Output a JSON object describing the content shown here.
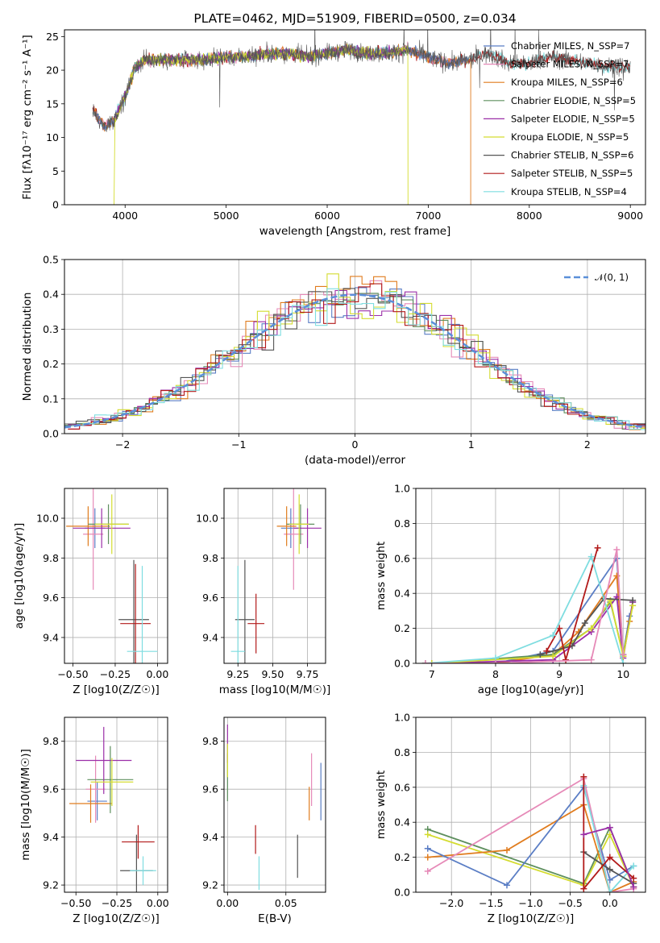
{
  "chart_data": [
    {
      "type": "line",
      "title": "PLATE=0462, MJD=51909, FIBERID=0500, z=0.034",
      "xlabel": "wavelength [Angstrom, rest frame]",
      "ylabel": "Flux [fλ10⁻¹⁷ erg cm⁻² s⁻¹ A⁻¹]",
      "xlim": [
        3400,
        9150
      ],
      "ylim": [
        0,
        26
      ],
      "xticks": [
        4000,
        5000,
        6000,
        7000,
        8000,
        9000
      ],
      "yticks": [
        0,
        5,
        10,
        15,
        20,
        25
      ],
      "legend_position": "top-right",
      "series": [
        {
          "name": "Chabrier MILES, N_SSP=7",
          "color": "#5B7EC5",
          "x_range": [
            3700,
            7400
          ]
        },
        {
          "name": "Salpeter MILES, N_SSP=7",
          "color": "#E68AB8",
          "x_range": [
            3700,
            7400
          ]
        },
        {
          "name": "Kroupa MILES, N_SSP=6",
          "color": "#E07C1E",
          "x_range": [
            3700,
            7420
          ]
        },
        {
          "name": "Chabrier ELODIE, N_SSP=5",
          "color": "#5E8F5E",
          "x_range": [
            3900,
            6800
          ]
        },
        {
          "name": "Salpeter ELODIE, N_SSP=5",
          "color": "#9B2FA8",
          "x_range": [
            3900,
            6800
          ]
        },
        {
          "name": "Kroupa ELODIE, N_SSP=5",
          "color": "#D4DC30",
          "x_range": [
            3900,
            6800
          ]
        },
        {
          "name": "Chabrier STELIB, N_SSP=6",
          "color": "#555555",
          "x_range": [
            3680,
            9000
          ]
        },
        {
          "name": "Salpeter STELIB, N_SSP=5",
          "color": "#B21A1A",
          "x_range": [
            3680,
            9000
          ]
        },
        {
          "name": "Kroupa STELIB, N_SSP=4",
          "color": "#7FDDE0",
          "x_range": [
            3680,
            9000
          ]
        }
      ],
      "continuum_knots_x": [
        3680,
        3800,
        3900,
        4000,
        4100,
        4200,
        4400,
        4600,
        4800,
        5000,
        5200,
        5400,
        5600,
        5800,
        6000,
        6200,
        6400,
        6600,
        6800,
        7000,
        7200,
        7400,
        7600,
        7800,
        8000,
        8200,
        8400,
        8600,
        8800,
        9000
      ],
      "continuum_knots_y": [
        14,
        11.5,
        13,
        16,
        20.5,
        21.5,
        21.5,
        21.5,
        21.5,
        22,
        22,
        22.5,
        22.5,
        22,
        22.5,
        23,
        22.5,
        22.5,
        23,
        22,
        21,
        21.5,
        22.5,
        21,
        21,
        22,
        21.5,
        21,
        20.5,
        20.5
      ]
    },
    {
      "type": "step",
      "xlabel": "(data-model)/error",
      "ylabel": "Normed distribution",
      "xlim": [
        -2.5,
        2.5
      ],
      "ylim": [
        0,
        0.5
      ],
      "xticks": [
        -2,
        -1,
        0,
        1,
        2
      ],
      "yticks": [
        0.0,
        0.1,
        0.2,
        0.3,
        0.4,
        0.5
      ],
      "legend": "𝒩(0, 1)",
      "legend_position": "top-right",
      "bin_width": 0.1
    },
    {
      "type": "scatter",
      "xlabel": "Z [log10(Z/Z☉)]",
      "ylabel": "age [log10(age/yr)]",
      "xlim": [
        -0.55,
        0.06
      ],
      "ylim": [
        9.27,
        10.15
      ],
      "xticks": [
        -0.5,
        -0.25,
        0.0
      ],
      "yticks": [
        9.4,
        9.6,
        9.8,
        10.0
      ],
      "points": [
        {
          "x": -0.37,
          "xerr": 0.06,
          "y": 9.95,
          "yerr": 0.1
        },
        {
          "x": -0.38,
          "xerr": 0.06,
          "y": 9.92,
          "yerr": 0.28
        },
        {
          "x": -0.41,
          "xerr": 0.13,
          "y": 9.96,
          "yerr": 0.1
        },
        {
          "x": -0.29,
          "xerr": 0.12,
          "y": 9.97,
          "yerr": 0.1
        },
        {
          "x": -0.33,
          "xerr": 0.17,
          "y": 9.95,
          "yerr": 0.1
        },
        {
          "x": -0.27,
          "xerr": 0.1,
          "y": 9.97,
          "yerr": 0.15
        },
        {
          "x": -0.14,
          "xerr": 0.09,
          "y": 9.49,
          "yerr": 0.3
        },
        {
          "x": -0.13,
          "xerr": 0.09,
          "y": 9.47,
          "yerr": 0.3
        },
        {
          "x": -0.09,
          "xerr": 0.09,
          "y": 9.33,
          "yerr": 0.43
        }
      ]
    },
    {
      "type": "scatter",
      "xlabel": "mass [log10(M/M☉)]",
      "xlim": [
        9.15,
        9.88
      ],
      "ylim": [
        9.27,
        10.15
      ],
      "xticks": [
        9.25,
        9.5,
        9.75
      ],
      "yticks": [
        9.4,
        9.6,
        9.8,
        10.0
      ],
      "points": [
        {
          "x": 9.63,
          "xerr": 0.07,
          "y": 9.95,
          "yerr": 0.1
        },
        {
          "x": 9.65,
          "xerr": 0.07,
          "y": 9.92,
          "yerr": 0.28
        },
        {
          "x": 9.6,
          "xerr": 0.07,
          "y": 9.96,
          "yerr": 0.1
        },
        {
          "x": 9.7,
          "xerr": 0.1,
          "y": 9.97,
          "yerr": 0.1
        },
        {
          "x": 9.75,
          "xerr": 0.1,
          "y": 9.95,
          "yerr": 0.1
        },
        {
          "x": 9.69,
          "xerr": 0.07,
          "y": 9.97,
          "yerr": 0.15
        },
        {
          "x": 9.3,
          "xerr": 0.07,
          "y": 9.49,
          "yerr": 0.3
        },
        {
          "x": 9.38,
          "xerr": 0.06,
          "y": 9.47,
          "yerr": 0.15
        },
        {
          "x": 9.25,
          "xerr": 0.05,
          "y": 9.33,
          "yerr": 0.43
        }
      ]
    },
    {
      "type": "line",
      "xlabel": "age [log10(age/yr)]",
      "ylabel": "mass weight",
      "xlim": [
        6.75,
        10.35
      ],
      "ylim": [
        0,
        1
      ],
      "xticks": [
        7,
        8,
        9,
        10
      ],
      "yticks": [
        0.0,
        0.2,
        0.4,
        0.6,
        0.8,
        1.0
      ],
      "series": [
        {
          "color": "#5B7EC5",
          "x": [
            6.9,
            8.0,
            8.9,
            9.9,
            10.0,
            10.1
          ],
          "y": [
            0.0,
            0.0,
            0.07,
            0.6,
            0.05,
            0.27
          ]
        },
        {
          "color": "#E07C1E",
          "x": [
            6.9,
            8.0,
            8.9,
            9.3,
            9.9,
            10.0,
            10.1
          ],
          "y": [
            0.0,
            0.0,
            0.05,
            0.18,
            0.5,
            0.04,
            0.24
          ]
        },
        {
          "color": "#5E8F5E",
          "x": [
            7.0,
            8.9,
            9.5,
            9.8,
            10.0,
            10.15
          ],
          "y": [
            0.0,
            0.05,
            0.2,
            0.35,
            0.05,
            0.35
          ]
        },
        {
          "color": "#9B2FA8",
          "x": [
            7.0,
            8.9,
            9.5,
            9.9,
            10.0,
            10.15
          ],
          "y": [
            0.0,
            0.02,
            0.18,
            0.38,
            0.03,
            0.35
          ]
        },
        {
          "color": "#D4DC30",
          "x": [
            7.0,
            8.9,
            9.5,
            9.8,
            10.0,
            10.15
          ],
          "y": [
            0.0,
            0.04,
            0.2,
            0.36,
            0.04,
            0.33
          ]
        },
        {
          "color": "#555555",
          "x": [
            8.7,
            9.2,
            9.4,
            9.7,
            10.15
          ],
          "y": [
            0.05,
            0.1,
            0.23,
            0.37,
            0.36
          ]
        },
        {
          "color": "#B21A1A",
          "x": [
            8.8,
            9.0,
            9.1,
            9.6
          ],
          "y": [
            0.07,
            0.2,
            0.02,
            0.66
          ]
        },
        {
          "color": "#7FDDE0",
          "x": [
            6.9,
            8.0,
            8.9,
            9.5,
            10.0
          ],
          "y": [
            0.0,
            0.03,
            0.16,
            0.61,
            0.0
          ]
        },
        {
          "color": "#E68AB8",
          "x": [
            6.9,
            8.0,
            9.5,
            9.9,
            10.0
          ],
          "y": [
            0.0,
            0.0,
            0.02,
            0.65,
            0.05
          ]
        }
      ]
    },
    {
      "type": "scatter",
      "xlabel": "Z [log10(Z/Z☉)]",
      "ylabel": "mass [log10(M/M☉)]",
      "xlim": [
        -0.57,
        0.06
      ],
      "ylim": [
        9.17,
        9.9
      ],
      "xticks": [
        -0.5,
        -0.25,
        0.0
      ],
      "yticks": [
        9.2,
        9.4,
        9.6,
        9.8
      ],
      "points": [
        {
          "x": -0.37,
          "xerr": 0.06,
          "y": 9.55,
          "yerr": 0.08
        },
        {
          "x": -0.38,
          "xerr": 0.06,
          "y": 9.6,
          "yerr": 0.14
        },
        {
          "x": -0.41,
          "xerr": 0.13,
          "y": 9.54,
          "yerr": 0.08
        },
        {
          "x": -0.29,
          "xerr": 0.14,
          "y": 9.64,
          "yerr": 0.14
        },
        {
          "x": -0.33,
          "xerr": 0.17,
          "y": 9.72,
          "yerr": 0.14
        },
        {
          "x": -0.28,
          "xerr": 0.13,
          "y": 9.63,
          "yerr": 0.1
        },
        {
          "x": -0.13,
          "xerr": 0.1,
          "y": 9.26,
          "yerr": 0.15
        },
        {
          "x": -0.12,
          "xerr": 0.1,
          "y": 9.38,
          "yerr": 0.07
        },
        {
          "x": -0.09,
          "xerr": 0.08,
          "y": 9.26,
          "yerr": 0.06
        }
      ]
    },
    {
      "type": "scatter",
      "xlabel": "E(B-V)",
      "xlim": [
        -0.003,
        0.084
      ],
      "ylim": [
        9.17,
        9.9
      ],
      "xticks": [
        0.0,
        0.05
      ],
      "yticks": [
        9.2,
        9.4,
        9.6,
        9.8
      ],
      "points": [
        {
          "x": 0.08,
          "y": 9.59,
          "yerr": 0.12
        },
        {
          "x": 0.072,
          "y": 9.64,
          "yerr": 0.11
        },
        {
          "x": 0.07,
          "y": 9.54,
          "yerr": 0.07
        },
        {
          "x": 0.0,
          "y": 9.65,
          "yerr": 0.1
        },
        {
          "x": 0.0,
          "y": 9.79,
          "yerr": 0.08
        },
        {
          "x": 0.0,
          "y": 9.72,
          "yerr": 0.07
        },
        {
          "x": 0.06,
          "y": 9.32,
          "yerr": 0.09
        },
        {
          "x": 0.024,
          "y": 9.39,
          "yerr": 0.06
        },
        {
          "x": 0.027,
          "y": 9.25,
          "yerr": 0.07
        }
      ]
    },
    {
      "type": "line",
      "xlabel": "Z [log10(Z/Z☉)]",
      "ylabel": "mass weight",
      "xlim": [
        -2.45,
        0.45
      ],
      "ylim": [
        0,
        1
      ],
      "xticks": [
        -2.0,
        -1.5,
        -1.0,
        -0.5,
        0.0
      ],
      "yticks": [
        0.0,
        0.2,
        0.4,
        0.6,
        0.8,
        1.0
      ],
      "series": [
        {
          "color": "#5E8F5E",
          "x": [
            -2.3,
            -0.33,
            0.0,
            0.3
          ],
          "y": [
            0.36,
            0.05,
            0.37,
            0.03
          ]
        },
        {
          "color": "#D4DC30",
          "x": [
            -2.3,
            -0.33,
            0.0,
            0.3
          ],
          "y": [
            0.33,
            0.04,
            0.33,
            0.03
          ]
        },
        {
          "color": "#E07C1E",
          "x": [
            -2.3,
            -1.3,
            -0.33,
            0.0,
            0.3
          ],
          "y": [
            0.2,
            0.24,
            0.5,
            0.0,
            0.06
          ]
        },
        {
          "color": "#5B7EC5",
          "x": [
            -2.3,
            -1.3,
            -0.33,
            0.0,
            0.3
          ],
          "y": [
            0.25,
            0.04,
            0.6,
            0.07,
            0.15
          ]
        },
        {
          "color": "#E68AB8",
          "x": [
            -2.3,
            -0.33,
            0.0,
            0.3
          ],
          "y": [
            0.12,
            0.65,
            0.0,
            0.02
          ]
        },
        {
          "color": "#7FDDE0",
          "x": [
            -0.33,
            0.0,
            0.3
          ],
          "y": [
            0.61,
            0.0,
            0.15
          ]
        },
        {
          "color": "#555555",
          "x": [
            -0.33,
            0.0,
            0.3
          ],
          "y": [
            0.23,
            0.13,
            0.05
          ]
        },
        {
          "color": "#B21A1A",
          "x": [
            -0.33,
            -0.33,
            0.0,
            0.3
          ],
          "y": [
            0.66,
            0.02,
            0.2,
            0.08
          ]
        },
        {
          "color": "#9B2FA8",
          "x": [
            -0.33,
            0.0,
            0.3
          ],
          "y": [
            0.33,
            0.37,
            0.03
          ]
        }
      ]
    }
  ]
}
